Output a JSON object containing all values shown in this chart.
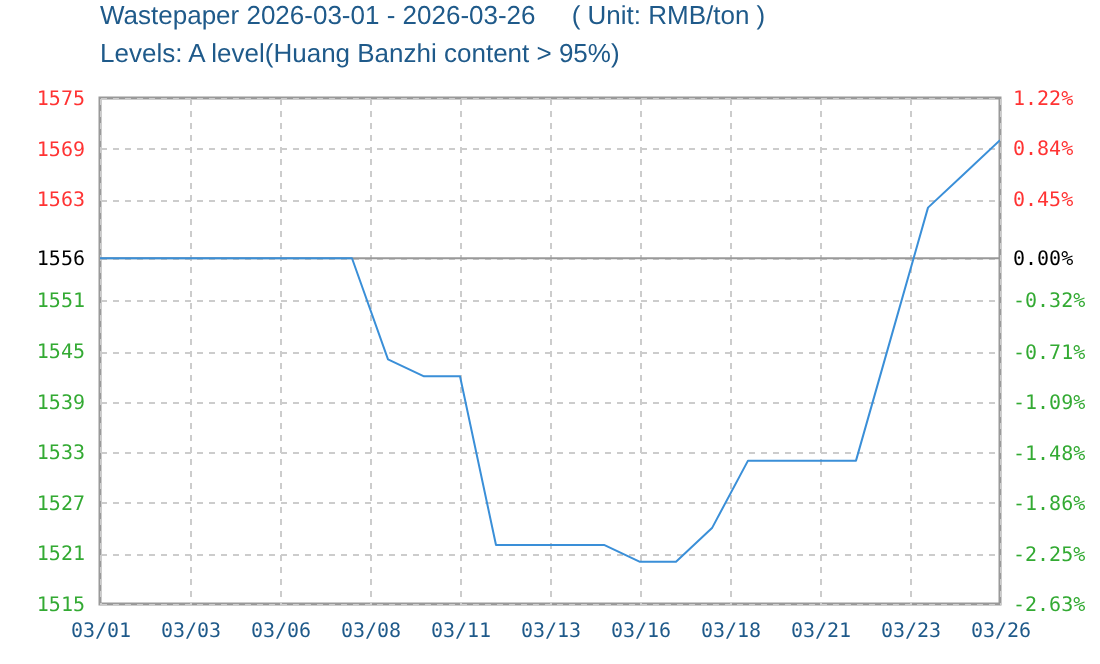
{
  "chart_data": {
    "type": "line",
    "title": "Wastepaper 2026-03-01 - 2026-03-26     ( Unit: RMB/ton )",
    "subtitle": "Levels: A level(Huang Banzhi content > 95%)",
    "x": [
      "2026-03-01",
      "2026-03-02",
      "2026-03-03",
      "2026-03-04",
      "2026-03-05",
      "2026-03-06",
      "2026-03-07",
      "2026-03-08",
      "2026-03-09",
      "2026-03-10",
      "2026-03-11",
      "2026-03-12",
      "2026-03-13",
      "2026-03-14",
      "2026-03-15",
      "2026-03-16",
      "2026-03-17",
      "2026-03-18",
      "2026-03-19",
      "2026-03-20",
      "2026-03-21",
      "2026-03-22",
      "2026-03-23",
      "2026-03-24",
      "2026-03-25",
      "2026-03-26"
    ],
    "series": [
      {
        "color": "#3a8fd8",
        "values": [
          1556,
          1556,
          1556,
          1556,
          1556,
          1556,
          1556,
          1556,
          1544,
          1542,
          1542,
          1522,
          1522,
          1522,
          1522,
          1520,
          1520,
          1524,
          1532,
          1532,
          1532,
          1532,
          1547,
          1562,
          1566,
          1570
        ]
      }
    ],
    "xlim": [
      "2026-03-01",
      "2026-03-26"
    ],
    "xticks": [
      {
        "value": "2026-03-01",
        "label": "03/01"
      },
      {
        "value": "2026-03-03T12:00",
        "label": "03/03"
      },
      {
        "value": "2026-03-06",
        "label": "03/06"
      },
      {
        "value": "2026-03-08T12:00",
        "label": "03/08"
      },
      {
        "value": "2026-03-11",
        "label": "03/11"
      },
      {
        "value": "2026-03-13T12:00",
        "label": "03/13"
      },
      {
        "value": "2026-03-16",
        "label": "03/16"
      },
      {
        "value": "2026-03-18T12:00",
        "label": "03/18"
      },
      {
        "value": "2026-03-21",
        "label": "03/21"
      },
      {
        "value": "2026-03-23T12:00",
        "label": "03/23"
      },
      {
        "value": "2026-03-26",
        "label": "03/26"
      }
    ],
    "ylim": [
      1515,
      1575
    ],
    "yticks": [
      1515,
      1521,
      1527,
      1533,
      1539,
      1545,
      1551,
      1556,
      1563,
      1569,
      1575
    ],
    "y2lim": [
      -2.63,
      1.22
    ],
    "y2ticks": [
      {
        "value": -2.63,
        "label": "-2.63%"
      },
      {
        "value": -2.25,
        "label": "-2.25%"
      },
      {
        "value": -1.86,
        "label": "-1.86%"
      },
      {
        "value": -1.48,
        "label": "-1.48%"
      },
      {
        "value": -1.09,
        "label": "-1.09%"
      },
      {
        "value": -0.71,
        "label": "-0.71%"
      },
      {
        "value": -0.32,
        "label": "-0.32%"
      },
      {
        "value": 0,
        "label": "0.00%"
      },
      {
        "value": 0.45,
        "label": "0.45%"
      },
      {
        "value": 0.84,
        "label": "0.84%"
      },
      {
        "value": 1.22,
        "label": "1.22%"
      }
    ],
    "ref_lines": [
      {
        "axis": "y",
        "value": 1556,
        "color": "#999999"
      }
    ],
    "grid": true,
    "legend": false
  }
}
